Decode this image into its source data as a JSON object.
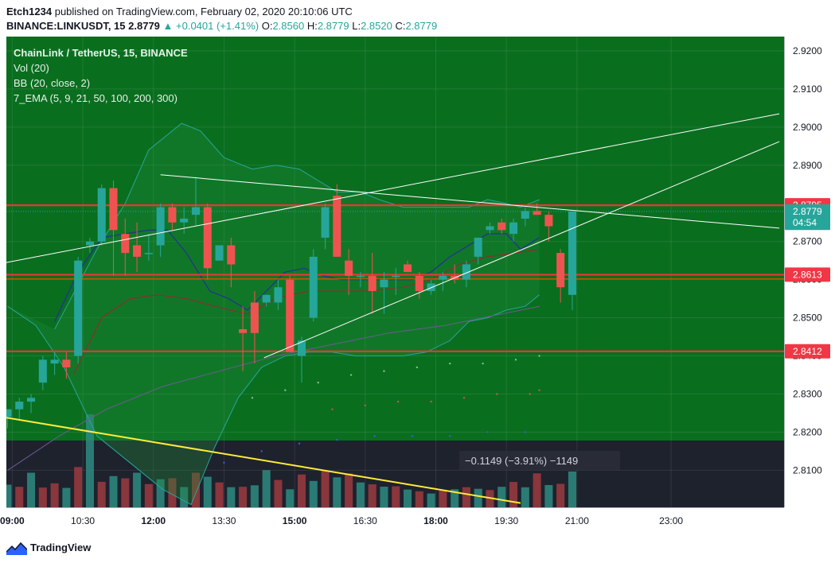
{
  "header": {
    "publisher": "Etch1234",
    "published_text": "published on TradingView.com, February 02, 2020 20:10:06 UTC",
    "symbol": "BINANCE:LINKUSDT, 15",
    "last": "2.8779",
    "change": "▲ +0.0401 (+1.41%)",
    "o_label": "O:",
    "o_value": "2.8560",
    "h_label": "H:",
    "h_value": "2.8779",
    "l_label": "L:",
    "l_value": "2.8520",
    "c_label": "C:",
    "c_value": "2.8779"
  },
  "legend": {
    "title": "ChainLink / TetherUS, 15, BINANCE",
    "vol": "Vol (20)",
    "bb": "BB (20, close, 2)",
    "ema": "7_EMA (5, 9, 21, 50, 100, 200, 300)"
  },
  "measure_label": "−0.1149 (−3.91%) −1149",
  "footer": {
    "brand": "TradingView"
  },
  "chart_data": {
    "type": "candlestick",
    "symbol": "LINKUSDT",
    "interval": "15",
    "ylim": [
      2.802,
      2.923
    ],
    "y_ticks": [
      "2.9200",
      "2.9100",
      "2.9000",
      "2.8900",
      "2.8700",
      "2.8600",
      "2.8500",
      "2.8400",
      "2.8300",
      "2.8200",
      "2.8100"
    ],
    "y_tick_values": [
      2.92,
      2.91,
      2.9,
      2.89,
      2.87,
      2.86,
      2.85,
      2.84,
      2.83,
      2.82,
      2.81
    ],
    "x_ticks": [
      "09:00",
      "10:30",
      "12:00",
      "13:30",
      "15:00",
      "16:30",
      "18:00",
      "19:30",
      "21:00",
      "23:00"
    ],
    "x_tick_hours": [
      9,
      10.5,
      12,
      13.5,
      15,
      16.5,
      18,
      19.5,
      21,
      23
    ],
    "x_range_hours": [
      8.875,
      25.4
    ],
    "price_labels": [
      {
        "text": "2.8795",
        "value": 2.8795,
        "color": "#f23645"
      },
      {
        "text": "2.8779",
        "value": 2.8779,
        "color": "#26a69a"
      },
      {
        "text": "04:54",
        "value": 2.8749,
        "color": "#26a69a"
      },
      {
        "text": "2.8613",
        "value": 2.8613,
        "color": "#f23645"
      },
      {
        "text": "2.8412",
        "value": 2.8412,
        "color": "#f23645"
      }
    ],
    "horizontal_levels": [
      2.8795,
      2.8613,
      2.8412
    ],
    "candles": [
      [
        2.824,
        2.826,
        2.821,
        2.826
      ],
      [
        2.826,
        2.829,
        2.823,
        2.828
      ],
      [
        2.828,
        2.83,
        2.825,
        2.829
      ],
      [
        2.833,
        2.84,
        2.831,
        2.839
      ],
      [
        2.838,
        2.841,
        2.835,
        2.839
      ],
      [
        2.839,
        2.841,
        2.834,
        2.837
      ],
      [
        2.84,
        2.866,
        2.838,
        2.865
      ],
      [
        2.869,
        2.871,
        2.867,
        2.87
      ],
      [
        2.87,
        2.885,
        2.869,
        2.884
      ],
      [
        2.884,
        2.886,
        2.861,
        2.873
      ],
      [
        2.872,
        2.876,
        2.861,
        2.867
      ],
      [
        2.869,
        2.875,
        2.862,
        2.866
      ],
      [
        2.867,
        2.872,
        2.865,
        2.867
      ],
      [
        2.869,
        2.88,
        2.866,
        2.879
      ],
      [
        2.879,
        2.88,
        2.873,
        2.875
      ],
      [
        2.875,
        2.879,
        2.872,
        2.876
      ],
      [
        2.877,
        2.887,
        2.874,
        2.879
      ],
      [
        2.879,
        2.88,
        2.86,
        2.863
      ],
      [
        2.865,
        2.869,
        2.865,
        2.869
      ],
      [
        2.869,
        2.871,
        2.858,
        2.864
      ],
      [
        2.847,
        2.853,
        2.836,
        2.846
      ],
      [
        2.854,
        2.857,
        2.838,
        2.846
      ],
      [
        2.854,
        2.856,
        2.853,
        2.856
      ],
      [
        2.854,
        2.86,
        2.852,
        2.858
      ],
      [
        2.86,
        2.861,
        2.841,
        2.841
      ],
      [
        2.84,
        2.845,
        2.833,
        2.844
      ],
      [
        2.85,
        2.868,
        2.849,
        2.866
      ],
      [
        2.871,
        2.88,
        2.868,
        2.879
      ],
      [
        2.882,
        2.885,
        2.866,
        2.866
      ],
      [
        2.865,
        2.868,
        2.856,
        2.861
      ],
      [
        2.861,
        2.862,
        2.858,
        2.861
      ],
      [
        2.861,
        2.867,
        2.851,
        2.857
      ],
      [
        2.858,
        2.862,
        2.851,
        2.86
      ],
      [
        2.861,
        2.863,
        2.856,
        2.861
      ],
      [
        2.864,
        2.865,
        2.862,
        2.862
      ],
      [
        2.861,
        2.862,
        2.855,
        2.857
      ],
      [
        2.857,
        2.86,
        2.856,
        2.859
      ],
      [
        2.86,
        2.862,
        2.857,
        2.861
      ],
      [
        2.861,
        2.864,
        2.859,
        2.86
      ],
      [
        2.86,
        2.865,
        2.858,
        2.864
      ],
      [
        2.866,
        2.871,
        2.864,
        2.871
      ],
      [
        2.873,
        2.875,
        2.872,
        2.874
      ],
      [
        2.875,
        2.876,
        2.872,
        2.873
      ],
      [
        2.872,
        2.876,
        2.87,
        2.875
      ],
      [
        2.876,
        2.879,
        2.874,
        2.878
      ],
      [
        2.878,
        2.88,
        2.877,
        2.877
      ],
      [
        2.877,
        2.878,
        2.87,
        2.874
      ],
      [
        2.867,
        2.868,
        2.854,
        2.858
      ],
      [
        2.856,
        2.8779,
        2.852,
        2.8779
      ]
    ],
    "volume": [
      [
        1820,
        1
      ],
      [
        1650,
        0
      ],
      [
        2780,
        1
      ],
      [
        1590,
        0
      ],
      [
        1930,
        0
      ],
      [
        1560,
        1
      ],
      [
        3240,
        0
      ],
      [
        4920,
        1
      ],
      [
        2050,
        0
      ],
      [
        2510,
        1
      ],
      [
        2330,
        0
      ],
      [
        2780,
        1
      ],
      [
        1870,
        0
      ],
      [
        2260,
        1
      ],
      [
        2340,
        0
      ],
      [
        1630,
        1
      ],
      [
        2780,
        0
      ],
      [
        2460,
        1
      ],
      [
        2000,
        0
      ],
      [
        1620,
        1
      ],
      [
        1650,
        0
      ],
      [
        1770,
        1
      ],
      [
        2990,
        1
      ],
      [
        2200,
        0
      ],
      [
        1450,
        1
      ],
      [
        2640,
        0
      ],
      [
        2120,
        1
      ],
      [
        2950,
        0
      ],
      [
        2410,
        1
      ],
      [
        2720,
        0
      ],
      [
        2000,
        1
      ],
      [
        1850,
        0
      ],
      [
        1660,
        1
      ],
      [
        1690,
        0
      ],
      [
        1430,
        1
      ],
      [
        1290,
        0
      ],
      [
        1110,
        1
      ],
      [
        1340,
        0
      ],
      [
        1450,
        1
      ],
      [
        1620,
        0
      ],
      [
        1490,
        1
      ],
      [
        1390,
        0
      ],
      [
        1650,
        1
      ],
      [
        2040,
        0
      ],
      [
        1610,
        1
      ],
      [
        2730,
        0
      ],
      [
        1790,
        1
      ],
      [
        1890,
        0
      ],
      [
        2880,
        1
      ]
    ],
    "volume_max": 5500,
    "bollinger_upper": [
      [
        9.9,
        2.847
      ],
      [
        10.8,
        2.868
      ],
      [
        11.4,
        2.88
      ],
      [
        11.9,
        2.894
      ],
      [
        12.3,
        2.898
      ],
      [
        12.6,
        2.901
      ],
      [
        13.0,
        2.899
      ],
      [
        13.5,
        2.892
      ],
      [
        14.1,
        2.889
      ],
      [
        14.6,
        2.89
      ],
      [
        15.1,
        2.889
      ],
      [
        15.5,
        2.886
      ],
      [
        15.9,
        2.883
      ],
      [
        16.4,
        2.883
      ],
      [
        16.8,
        2.881
      ],
      [
        17.3,
        2.879
      ],
      [
        17.8,
        2.879
      ],
      [
        18.3,
        2.879
      ],
      [
        18.7,
        2.879
      ],
      [
        19.1,
        2.881
      ],
      [
        19.5,
        2.88
      ],
      [
        19.8,
        2.879
      ],
      [
        20.2,
        2.881
      ]
    ],
    "bollinger_lower": [
      [
        8.9,
        2.853
      ],
      [
        9.5,
        2.848
      ],
      [
        10.1,
        2.837
      ],
      [
        10.8,
        2.819
      ],
      [
        11.5,
        2.812
      ],
      [
        12.2,
        2.805
      ],
      [
        12.8,
        2.801
      ],
      [
        13.3,
        2.816
      ],
      [
        13.8,
        2.829
      ],
      [
        14.3,
        2.837
      ],
      [
        14.8,
        2.84
      ],
      [
        15.3,
        2.841
      ],
      [
        15.8,
        2.841
      ],
      [
        16.3,
        2.84
      ],
      [
        16.8,
        2.84
      ],
      [
        17.3,
        2.84
      ],
      [
        17.8,
        2.841
      ],
      [
        18.3,
        2.844
      ],
      [
        18.7,
        2.849
      ],
      [
        19.1,
        2.85
      ],
      [
        19.5,
        2.852
      ],
      [
        19.9,
        2.853
      ],
      [
        20.2,
        2.856
      ]
    ],
    "ema_fast": [
      [
        9.9,
        2.849
      ],
      [
        10.4,
        2.862
      ],
      [
        10.9,
        2.871
      ],
      [
        11.4,
        2.872
      ],
      [
        11.9,
        2.873
      ],
      [
        12.3,
        2.873
      ],
      [
        12.7,
        2.867
      ],
      [
        13.2,
        2.857
      ],
      [
        13.6,
        2.855
      ],
      [
        14.0,
        2.852
      ],
      [
        14.4,
        2.857
      ],
      [
        14.8,
        2.862
      ],
      [
        15.2,
        2.863
      ],
      [
        15.6,
        2.861
      ],
      [
        16.0,
        2.86
      ],
      [
        16.5,
        2.86
      ],
      [
        17.0,
        2.86
      ],
      [
        17.5,
        2.86
      ],
      [
        17.9,
        2.862
      ],
      [
        18.3,
        2.866
      ],
      [
        18.7,
        2.869
      ],
      [
        19.1,
        2.872
      ],
      [
        19.5,
        2.872
      ],
      [
        19.8,
        2.868
      ],
      [
        20.2,
        2.871
      ]
    ],
    "ema_slow": [
      [
        10.3,
        2.835
      ],
      [
        10.9,
        2.85
      ],
      [
        11.5,
        2.855
      ],
      [
        12.1,
        2.856
      ],
      [
        12.7,
        2.855
      ],
      [
        13.3,
        2.853
      ],
      [
        14.0,
        2.851
      ],
      [
        14.6,
        2.855
      ],
      [
        15.3,
        2.857
      ],
      [
        16.0,
        2.857
      ],
      [
        16.6,
        2.857
      ],
      [
        17.3,
        2.858
      ],
      [
        17.9,
        2.86
      ],
      [
        18.5,
        2.864
      ],
      [
        19.1,
        2.866
      ],
      [
        19.7,
        2.867
      ],
      [
        20.2,
        2.868
      ]
    ],
    "ema_long": [
      [
        8.9,
        2.81
      ],
      [
        10.0,
        2.819
      ],
      [
        11.0,
        2.826
      ],
      [
        12.2,
        2.832
      ],
      [
        13.4,
        2.836
      ],
      [
        14.6,
        2.84
      ],
      [
        15.8,
        2.843
      ],
      [
        17.0,
        2.846
      ],
      [
        18.2,
        2.848
      ],
      [
        19.4,
        2.851
      ],
      [
        20.2,
        2.853
      ]
    ],
    "ema_dots_1": [
      [
        14.1,
        2.829
      ],
      [
        14.8,
        2.831
      ],
      [
        15.5,
        2.833
      ],
      [
        16.2,
        2.835
      ],
      [
        16.9,
        2.836
      ],
      [
        17.6,
        2.837
      ],
      [
        18.3,
        2.838
      ],
      [
        19.0,
        2.838
      ],
      [
        19.7,
        2.839
      ],
      [
        20.2,
        2.84
      ]
    ],
    "ema_dots_2": [
      [
        15.8,
        2.826
      ],
      [
        16.5,
        2.827
      ],
      [
        17.2,
        2.828
      ],
      [
        17.9,
        2.828
      ],
      [
        18.6,
        2.829
      ],
      [
        19.3,
        2.83
      ],
      [
        20.0,
        2.83
      ],
      [
        20.2,
        2.831
      ]
    ],
    "ema_dots_3": [
      [
        13.5,
        2.812
      ],
      [
        14.3,
        2.815
      ],
      [
        15.1,
        2.817
      ],
      [
        15.9,
        2.818
      ],
      [
        16.7,
        2.819
      ],
      [
        17.5,
        2.819
      ],
      [
        18.3,
        2.819
      ],
      [
        19.1,
        2.82
      ],
      [
        19.9,
        2.82
      ]
    ],
    "trendlines": [
      {
        "from": [
          8.875,
          2.8645
        ],
        "to": [
          25.3,
          2.9035
        ],
        "color": "#ffffff"
      },
      {
        "from": [
          12.15,
          2.8875
        ],
        "to": [
          25.3,
          2.8735
        ],
        "color": "#ffffff"
      },
      {
        "from": [
          14.35,
          2.8395
        ],
        "to": [
          25.3,
          2.8962
        ],
        "color": "#ffffff"
      },
      {
        "from": [
          8.875,
          2.8238
        ],
        "to": [
          19.8,
          2.8014
        ],
        "color": "#ffeb3b"
      }
    ]
  }
}
